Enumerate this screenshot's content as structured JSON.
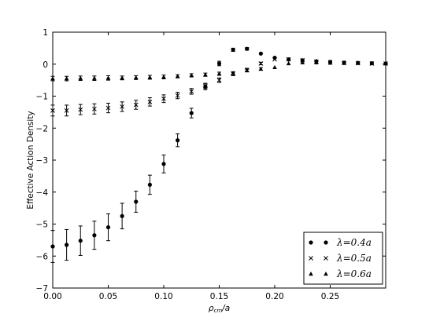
{
  "chart_data": {
    "type": "scatter",
    "title": "",
    "xlabel": "ρ_cm/a",
    "xlabel_main": "ρ",
    "xlabel_sub": "cm",
    "xlabel_rest": "/a",
    "ylabel": "Effective Action Density",
    "xlim": [
      0.0,
      0.3
    ],
    "ylim": [
      -7,
      1
    ],
    "xticks": [
      0.0,
      0.05,
      0.1,
      0.15,
      0.2,
      0.25
    ],
    "xtick_labels": [
      "0.00",
      "0.05",
      "0.10",
      "0.15",
      "0.20",
      "0.25"
    ],
    "yticks": [
      1,
      0,
      -1,
      -2,
      -3,
      -4,
      -5,
      -6,
      -7
    ],
    "ytick_labels": [
      "1",
      "0",
      "−1",
      "−2",
      "−3",
      "−4",
      "−5",
      "−6",
      "−7"
    ],
    "grid": false,
    "legend_position": "lower-right",
    "series": [
      {
        "name": "λ=0.4a",
        "marker": "circle",
        "x": [
          0.0,
          0.0125,
          0.025,
          0.0375,
          0.05,
          0.0625,
          0.075,
          0.0875,
          0.1,
          0.1125,
          0.125,
          0.1375,
          0.15,
          0.1625,
          0.175,
          0.1875,
          0.2,
          0.2125,
          0.225,
          0.2375,
          0.25,
          0.2625,
          0.275,
          0.2875,
          0.3
        ],
        "y": [
          -5.7,
          -5.65,
          -5.52,
          -5.35,
          -5.1,
          -4.75,
          -4.3,
          -3.77,
          -3.12,
          -2.38,
          -1.53,
          -0.7,
          0.02,
          0.45,
          0.48,
          0.33,
          0.2,
          0.15,
          0.12,
          0.09,
          0.07,
          0.05,
          0.04,
          0.03,
          0.02
        ],
        "err": [
          0.5,
          0.48,
          0.46,
          0.44,
          0.42,
          0.4,
          0.33,
          0.3,
          0.28,
          0.2,
          0.15,
          0.1,
          0.07,
          0.05,
          0.04,
          0.03,
          0.03,
          0.02,
          0.02,
          0.02,
          0.02,
          0.02,
          0.02,
          0.02,
          0.02
        ]
      },
      {
        "name": "λ=0.5a",
        "marker": "x",
        "x": [
          0.0,
          0.0125,
          0.025,
          0.0375,
          0.05,
          0.0625,
          0.075,
          0.0875,
          0.1,
          0.1125,
          0.125,
          0.1375,
          0.15,
          0.1625,
          0.175,
          0.1875,
          0.2,
          0.2125,
          0.225,
          0.2375,
          0.25,
          0.2625,
          0.275,
          0.2875,
          0.3
        ],
        "y": [
          -1.45,
          -1.45,
          -1.42,
          -1.4,
          -1.37,
          -1.33,
          -1.27,
          -1.18,
          -1.08,
          -0.98,
          -0.85,
          -0.68,
          -0.5,
          -0.3,
          -0.18,
          0.02,
          0.15,
          0.15,
          0.12,
          0.08,
          0.06,
          0.04,
          0.03,
          0.02,
          0.02
        ],
        "err": [
          0.17,
          0.17,
          0.16,
          0.16,
          0.15,
          0.15,
          0.14,
          0.13,
          0.12,
          0.1,
          0.09,
          0.08,
          0.07,
          0.06,
          0.05,
          0.04,
          0.03,
          0.03,
          0.03,
          0.02,
          0.02,
          0.02,
          0.02,
          0.02,
          0.02
        ]
      },
      {
        "name": "λ=0.6a",
        "marker": "triangle",
        "x": [
          0.0,
          0.0125,
          0.025,
          0.0375,
          0.05,
          0.0625,
          0.075,
          0.0875,
          0.1,
          0.1125,
          0.125,
          0.1375,
          0.15,
          0.1625,
          0.175,
          0.1875,
          0.2,
          0.2125,
          0.225,
          0.2375,
          0.25,
          0.2625,
          0.275,
          0.2875,
          0.3
        ],
        "y": [
          -0.45,
          -0.45,
          -0.44,
          -0.44,
          -0.43,
          -0.43,
          -0.42,
          -0.41,
          -0.4,
          -0.38,
          -0.35,
          -0.33,
          -0.3,
          -0.28,
          -0.2,
          -0.15,
          -0.1,
          0.02,
          0.05,
          0.05,
          0.04,
          0.03,
          0.03,
          0.02,
          0.02
        ],
        "err": [
          0.07,
          0.07,
          0.07,
          0.07,
          0.07,
          0.06,
          0.06,
          0.06,
          0.06,
          0.05,
          0.05,
          0.05,
          0.05,
          0.04,
          0.04,
          0.04,
          0.03,
          0.03,
          0.02,
          0.02,
          0.02,
          0.02,
          0.02,
          0.02,
          0.02
        ]
      }
    ]
  }
}
